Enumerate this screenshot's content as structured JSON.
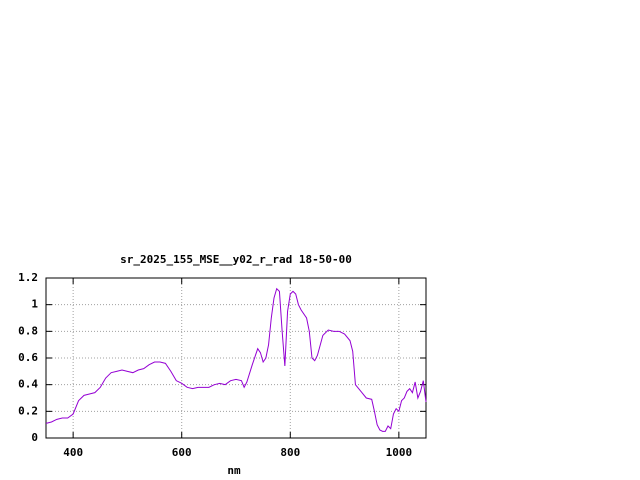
{
  "chart_data": {
    "type": "line",
    "title": "sr_2025_155_MSE__y02_r_rad 18-50-00",
    "x_label": "nm",
    "x": [
      350,
      360,
      370,
      380,
      390,
      400,
      410,
      420,
      430,
      440,
      450,
      460,
      470,
      480,
      490,
      500,
      510,
      520,
      530,
      540,
      550,
      560,
      570,
      580,
      590,
      600,
      610,
      620,
      630,
      640,
      650,
      660,
      670,
      680,
      690,
      700,
      710,
      715,
      720,
      730,
      740,
      745,
      750,
      755,
      760,
      765,
      770,
      775,
      780,
      785,
      790,
      795,
      800,
      805,
      810,
      815,
      820,
      830,
      835,
      840,
      845,
      850,
      860,
      870,
      880,
      890,
      900,
      910,
      915,
      920,
      930,
      940,
      950,
      955,
      960,
      965,
      970,
      975,
      980,
      985,
      990,
      995,
      1000,
      1005,
      1010,
      1015,
      1020,
      1025,
      1030,
      1035,
      1040,
      1045,
      1050
    ],
    "series": [
      {
        "color": "#9400d3",
        "values": [
          0.11,
          0.12,
          0.14,
          0.15,
          0.15,
          0.18,
          0.28,
          0.32,
          0.33,
          0.34,
          0.38,
          0.45,
          0.49,
          0.5,
          0.51,
          0.5,
          0.49,
          0.51,
          0.52,
          0.55,
          0.57,
          0.57,
          0.56,
          0.5,
          0.43,
          0.41,
          0.38,
          0.37,
          0.38,
          0.38,
          0.38,
          0.4,
          0.41,
          0.4,
          0.43,
          0.44,
          0.43,
          0.38,
          0.42,
          0.55,
          0.67,
          0.64,
          0.57,
          0.6,
          0.7,
          0.9,
          1.05,
          1.12,
          1.1,
          0.8,
          0.54,
          0.95,
          1.08,
          1.1,
          1.08,
          1.0,
          0.96,
          0.9,
          0.8,
          0.6,
          0.58,
          0.62,
          0.77,
          0.81,
          0.8,
          0.8,
          0.78,
          0.73,
          0.65,
          0.4,
          0.35,
          0.3,
          0.29,
          0.2,
          0.1,
          0.06,
          0.05,
          0.05,
          0.09,
          0.07,
          0.18,
          0.22,
          0.2,
          0.28,
          0.3,
          0.35,
          0.37,
          0.34,
          0.42,
          0.3,
          0.35,
          0.43,
          0.27
        ]
      }
    ],
    "xlim": [
      350,
      1050
    ],
    "ylim": [
      0,
      1.2
    ],
    "xticks": [
      400,
      600,
      800,
      1000
    ],
    "yticks": [
      0,
      0.2,
      0.4,
      0.6,
      0.8,
      1,
      1.2
    ],
    "grid": true
  }
}
